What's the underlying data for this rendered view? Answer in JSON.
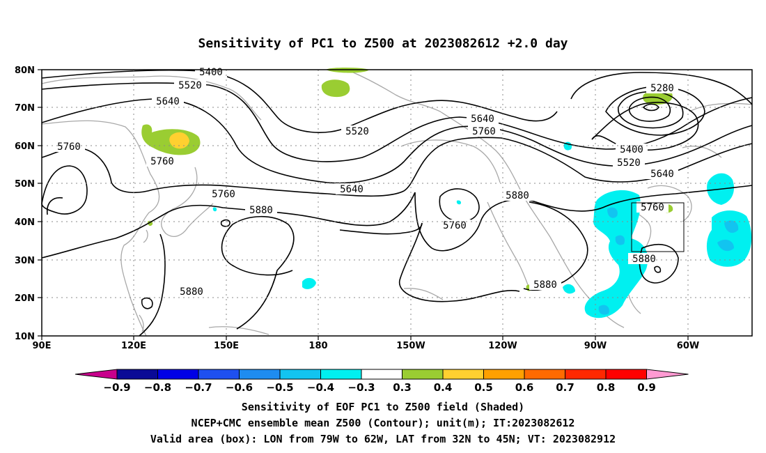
{
  "title": "Sensitivity of PC1 to Z500 at 2023082612 +2.0 day",
  "map": {
    "lat_labels": [
      "80N",
      "70N",
      "60N",
      "50N",
      "40N",
      "30N",
      "20N",
      "10N"
    ],
    "lon_labels": [
      "90E",
      "120E",
      "150E",
      "180",
      "150W",
      "120W",
      "90W",
      "60W"
    ],
    "gridlines": "dotted",
    "contour_labels": [
      "5400",
      "5520",
      "5640",
      "5760",
      "5520",
      "5640",
      "5760",
      "5280",
      "5400",
      "5520",
      "5640",
      "5760",
      "5880",
      "5760",
      "5640",
      "5760",
      "5880",
      "5880",
      "5880",
      "5880",
      "5760"
    ]
  },
  "colorbar": {
    "labels": [
      "−0.9",
      "−0.8",
      "−0.7",
      "−0.6",
      "−0.5",
      "−0.4",
      "−0.3",
      "0.3",
      "0.4",
      "0.5",
      "0.6",
      "0.7",
      "0.8",
      "0.9"
    ],
    "colors": [
      "#0a0a96",
      "#0000e6",
      "#1e50f0",
      "#1e8cf0",
      "#12c4f0",
      "#00f0f0",
      "#ffffff",
      "#9acd32",
      "#ffd030",
      "#ffa000",
      "#ff6a00",
      "#ff2800",
      "#ff0000"
    ],
    "low_end_color": "#c8008c",
    "high_end_color": "#ff9ad2"
  },
  "footer": {
    "line1": "Sensitivity of EOF PC1 to Z500 field (Shaded)",
    "line2": "NCEP+CMC ensemble mean Z500 (Contour); unit(m); IT:2023082612",
    "line3": "Valid area (box): LON from 79W to 62W, LAT from 32N to 45N; VT: 2023082912"
  }
}
